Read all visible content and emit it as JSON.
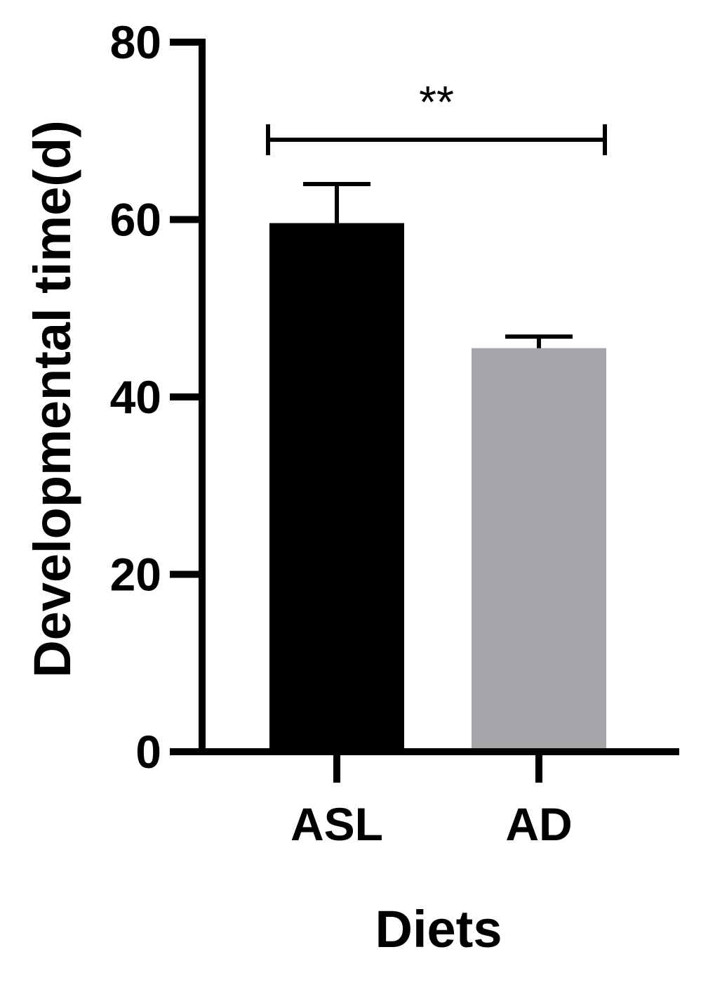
{
  "chart_data": {
    "type": "bar",
    "title": "",
    "xlabel": "Diets",
    "ylabel": "Developmental time(d)",
    "categories": [
      "ASL",
      "AD"
    ],
    "values": [
      59.6,
      45.5
    ],
    "errors": [
      4.4,
      1.3
    ],
    "bar_colors": [
      "#000000",
      "#a5a4a8"
    ],
    "ylim": [
      0,
      80
    ],
    "yticks": [
      "0",
      "20",
      "40",
      "60",
      "80"
    ],
    "grid": false,
    "significance": {
      "from": "ASL",
      "to": "AD",
      "label": "**",
      "y": 69
    }
  }
}
